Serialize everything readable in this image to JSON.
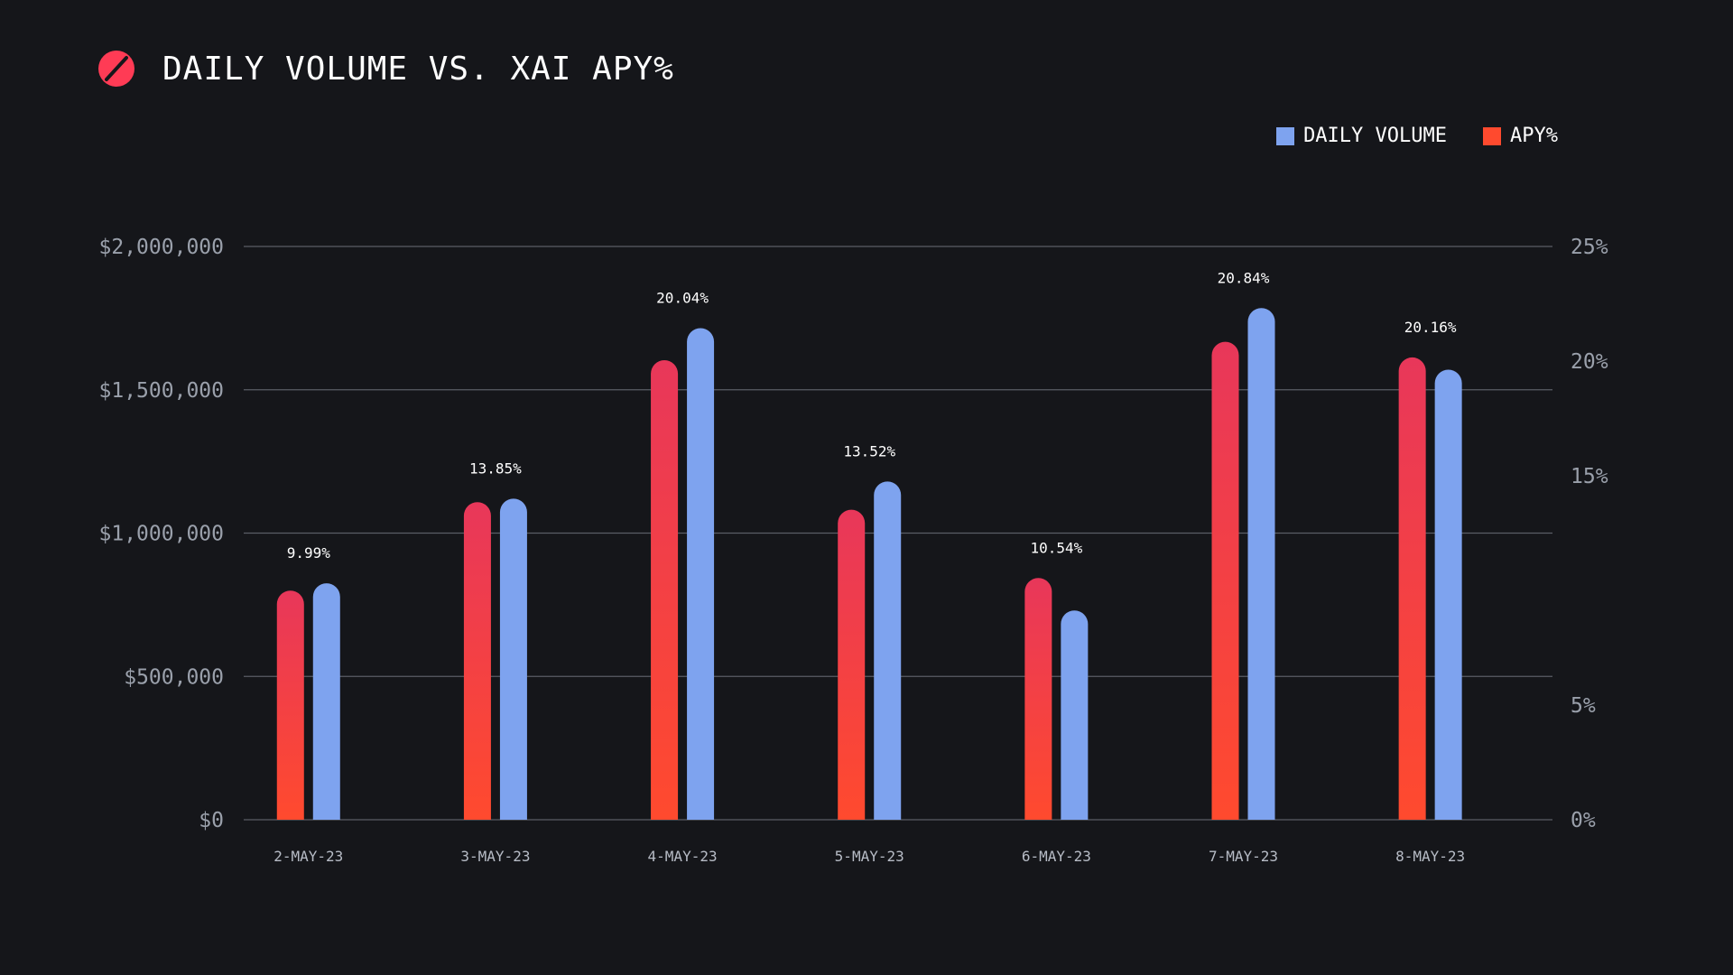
{
  "header": {
    "title": "DAILY VOLUME VS. XAI APY%",
    "logo_icon": "slashed-circle-logo-icon"
  },
  "legend": {
    "volume_label": "DAILY VOLUME",
    "apy_label": "APY%"
  },
  "colors": {
    "background": "#15161a",
    "volume": "#7ea3ef",
    "apy_top": "#e8375a",
    "apy_bottom": "#ff4a2e",
    "gridline": "#5a5e66",
    "logo_red": "#ff3b55"
  },
  "chart_data": {
    "type": "bar",
    "title": "DAILY VOLUME VS. XAI APY%",
    "categories": [
      "2-MAY-23",
      "3-MAY-23",
      "4-MAY-23",
      "5-MAY-23",
      "6-MAY-23",
      "7-MAY-23",
      "8-MAY-23"
    ],
    "series": [
      {
        "name": "APY%",
        "axis": "right",
        "values": [
          9.99,
          13.85,
          20.04,
          13.52,
          10.54,
          20.84,
          20.16
        ],
        "data_labels": [
          "9.99%",
          "13.85%",
          "20.04%",
          "13.52%",
          "10.54%",
          "20.84%",
          "20.16%"
        ]
      },
      {
        "name": "DAILY VOLUME",
        "axis": "left",
        "values": [
          825000,
          1120000,
          1715000,
          1180000,
          730000,
          1785000,
          1570000
        ]
      }
    ],
    "y_left": {
      "ylim": [
        0,
        2000000
      ],
      "ticks": [
        0,
        500000,
        1000000,
        1500000,
        2000000
      ],
      "tick_labels": [
        "$0",
        "$500,000",
        "$1,000,000",
        "$1,500,000",
        "$2,000,000"
      ]
    },
    "y_right": {
      "ylim": [
        0,
        25
      ],
      "ticks": [
        0,
        5,
        15,
        20,
        25
      ],
      "tick_labels": [
        "0%",
        "5%",
        "15%",
        "20%",
        "25%"
      ]
    },
    "grid": true,
    "legend_position": "top-right"
  }
}
